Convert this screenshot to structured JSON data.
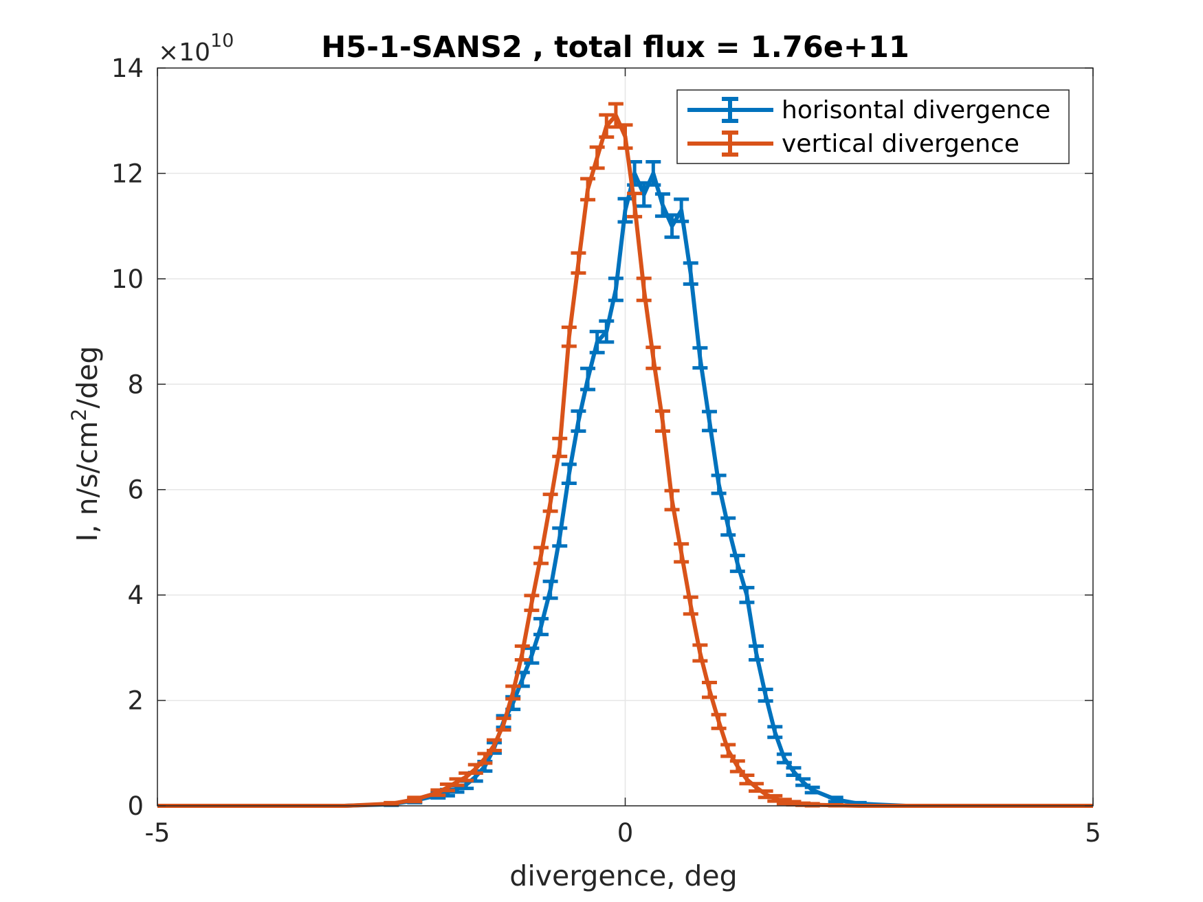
{
  "chart_data": {
    "type": "line",
    "title": "H5-1-SANS2 , total flux =  1.76e+11",
    "xlabel": "divergence, deg",
    "ylabel_main": "I, n/s/cm",
    "ylabel_sup": "2",
    "ylabel_tail": "/deg",
    "y_multiplier_base": "×10",
    "y_multiplier_exp": "10",
    "xlim": [
      -5,
      5
    ],
    "ylim": [
      0,
      14
    ],
    "xticks": [
      -5,
      0,
      5
    ],
    "xtick_labels": [
      "-5",
      "0",
      "5"
    ],
    "yticks": [
      0,
      2,
      4,
      6,
      8,
      10,
      12,
      14
    ],
    "ytick_labels": [
      "0",
      "2",
      "4",
      "6",
      "8",
      "10",
      "12",
      "14"
    ],
    "grid": true,
    "legend_position": "top-right",
    "series": [
      {
        "name": "horisontal divergence",
        "color": "#0072BD",
        "x": [
          -5,
          -4.25,
          -3.5,
          -3.0,
          -2.5,
          -2.25,
          -2.0,
          -1.9,
          -1.8,
          -1.7,
          -1.6,
          -1.5,
          -1.4,
          -1.3,
          -1.2,
          -1.1,
          -1.0,
          -0.9,
          -0.8,
          -0.7,
          -0.6,
          -0.5,
          -0.4,
          -0.3,
          -0.2,
          -0.1,
          0.0,
          0.1,
          0.2,
          0.3,
          0.4,
          0.5,
          0.6,
          0.7,
          0.8,
          0.9,
          1.0,
          1.1,
          1.2,
          1.3,
          1.4,
          1.5,
          1.6,
          1.7,
          1.8,
          1.9,
          2.0,
          2.25,
          2.5,
          3.0,
          3.5,
          4.25,
          5
        ],
        "y": [
          0,
          0,
          0,
          0,
          0.03,
          0.1,
          0.2,
          0.25,
          0.32,
          0.4,
          0.55,
          0.75,
          1.1,
          1.6,
          1.95,
          2.4,
          2.85,
          3.4,
          4.1,
          5.1,
          6.3,
          7.3,
          8.1,
          8.8,
          9.0,
          9.8,
          11.3,
          12.0,
          11.6,
          12.0,
          11.4,
          11.0,
          11.3,
          10.1,
          8.5,
          7.3,
          6.1,
          5.3,
          4.6,
          4.0,
          2.9,
          2.1,
          1.4,
          0.9,
          0.65,
          0.45,
          0.3,
          0.12,
          0.04,
          0,
          0,
          0,
          0
        ],
        "err": [
          0,
          0,
          0,
          0,
          0.02,
          0.04,
          0.05,
          0.06,
          0.06,
          0.07,
          0.08,
          0.09,
          0.1,
          0.11,
          0.12,
          0.13,
          0.14,
          0.15,
          0.16,
          0.17,
          0.18,
          0.19,
          0.2,
          0.2,
          0.2,
          0.21,
          0.22,
          0.22,
          0.22,
          0.22,
          0.21,
          0.21,
          0.21,
          0.2,
          0.19,
          0.18,
          0.17,
          0.16,
          0.15,
          0.14,
          0.13,
          0.11,
          0.1,
          0.08,
          0.07,
          0.06,
          0.05,
          0.04,
          0.02,
          0,
          0,
          0,
          0
        ]
      },
      {
        "name": "vertical divergence",
        "color": "#D95319",
        "x": [
          -5,
          -4.25,
          -3.5,
          -3.0,
          -2.5,
          -2.25,
          -2.0,
          -1.9,
          -1.8,
          -1.7,
          -1.6,
          -1.5,
          -1.4,
          -1.3,
          -1.2,
          -1.1,
          -1.0,
          -0.9,
          -0.8,
          -0.7,
          -0.6,
          -0.5,
          -0.4,
          -0.3,
          -0.2,
          -0.1,
          0.0,
          0.1,
          0.2,
          0.3,
          0.4,
          0.5,
          0.6,
          0.7,
          0.8,
          0.9,
          1.0,
          1.1,
          1.2,
          1.3,
          1.4,
          1.5,
          1.6,
          1.7,
          1.8,
          1.9,
          2.0,
          2.25,
          2.5,
          3.0,
          3.5,
          4.25,
          5
        ],
        "y": [
          0,
          0,
          0,
          0,
          0.04,
          0.12,
          0.25,
          0.35,
          0.45,
          0.55,
          0.7,
          0.9,
          1.15,
          1.55,
          2.15,
          2.9,
          3.85,
          4.75,
          5.75,
          6.8,
          8.9,
          10.3,
          11.7,
          12.3,
          12.9,
          13.1,
          12.7,
          11.4,
          9.8,
          8.5,
          7.3,
          5.8,
          4.8,
          3.8,
          2.9,
          2.2,
          1.6,
          1.05,
          0.75,
          0.5,
          0.35,
          0.22,
          0.14,
          0.08,
          0.05,
          0.03,
          0.02,
          0.01,
          0,
          0,
          0,
          0,
          0
        ],
        "err": [
          0,
          0,
          0,
          0,
          0.02,
          0.04,
          0.05,
          0.06,
          0.06,
          0.07,
          0.08,
          0.09,
          0.1,
          0.11,
          0.12,
          0.13,
          0.14,
          0.15,
          0.16,
          0.17,
          0.18,
          0.19,
          0.2,
          0.2,
          0.21,
          0.22,
          0.22,
          0.22,
          0.21,
          0.2,
          0.19,
          0.18,
          0.17,
          0.16,
          0.15,
          0.14,
          0.13,
          0.11,
          0.1,
          0.08,
          0.07,
          0.06,
          0.05,
          0.04,
          0.03,
          0.02,
          0.02,
          0.01,
          0,
          0,
          0,
          0,
          0
        ]
      }
    ]
  }
}
